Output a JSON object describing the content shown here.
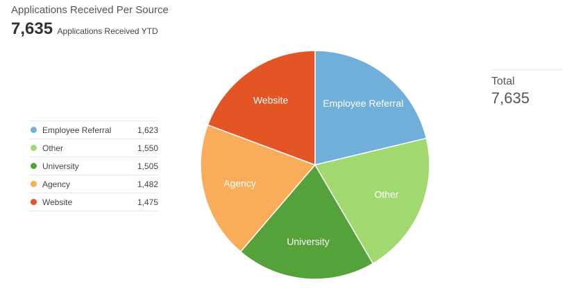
{
  "header": {
    "title": "Applications Received Per Source",
    "kpi_value": "7,635",
    "kpi_caption": "Applications Received YTD"
  },
  "total": {
    "label": "Total",
    "value": "7,635"
  },
  "legend": [
    {
      "label": "Employee Referral",
      "value": "1,623"
    },
    {
      "label": "Other",
      "value": "1,550"
    },
    {
      "label": "University",
      "value": "1,505"
    },
    {
      "label": "Agency",
      "value": "1,482"
    },
    {
      "label": "Website",
      "value": "1,475"
    }
  ],
  "colors": {
    "Employee Referral": "#6fafd9",
    "Other": "#a1d86f",
    "University": "#55a23a",
    "Agency": "#f9ad5a",
    "Website": "#e45525"
  },
  "chart_data": {
    "type": "pie",
    "title": "Applications Received Per Source",
    "categories": [
      "Employee Referral",
      "Other",
      "University",
      "Agency",
      "Website"
    ],
    "values": [
      1623,
      1550,
      1505,
      1482,
      1475
    ],
    "total": 7635,
    "legend": "left"
  }
}
